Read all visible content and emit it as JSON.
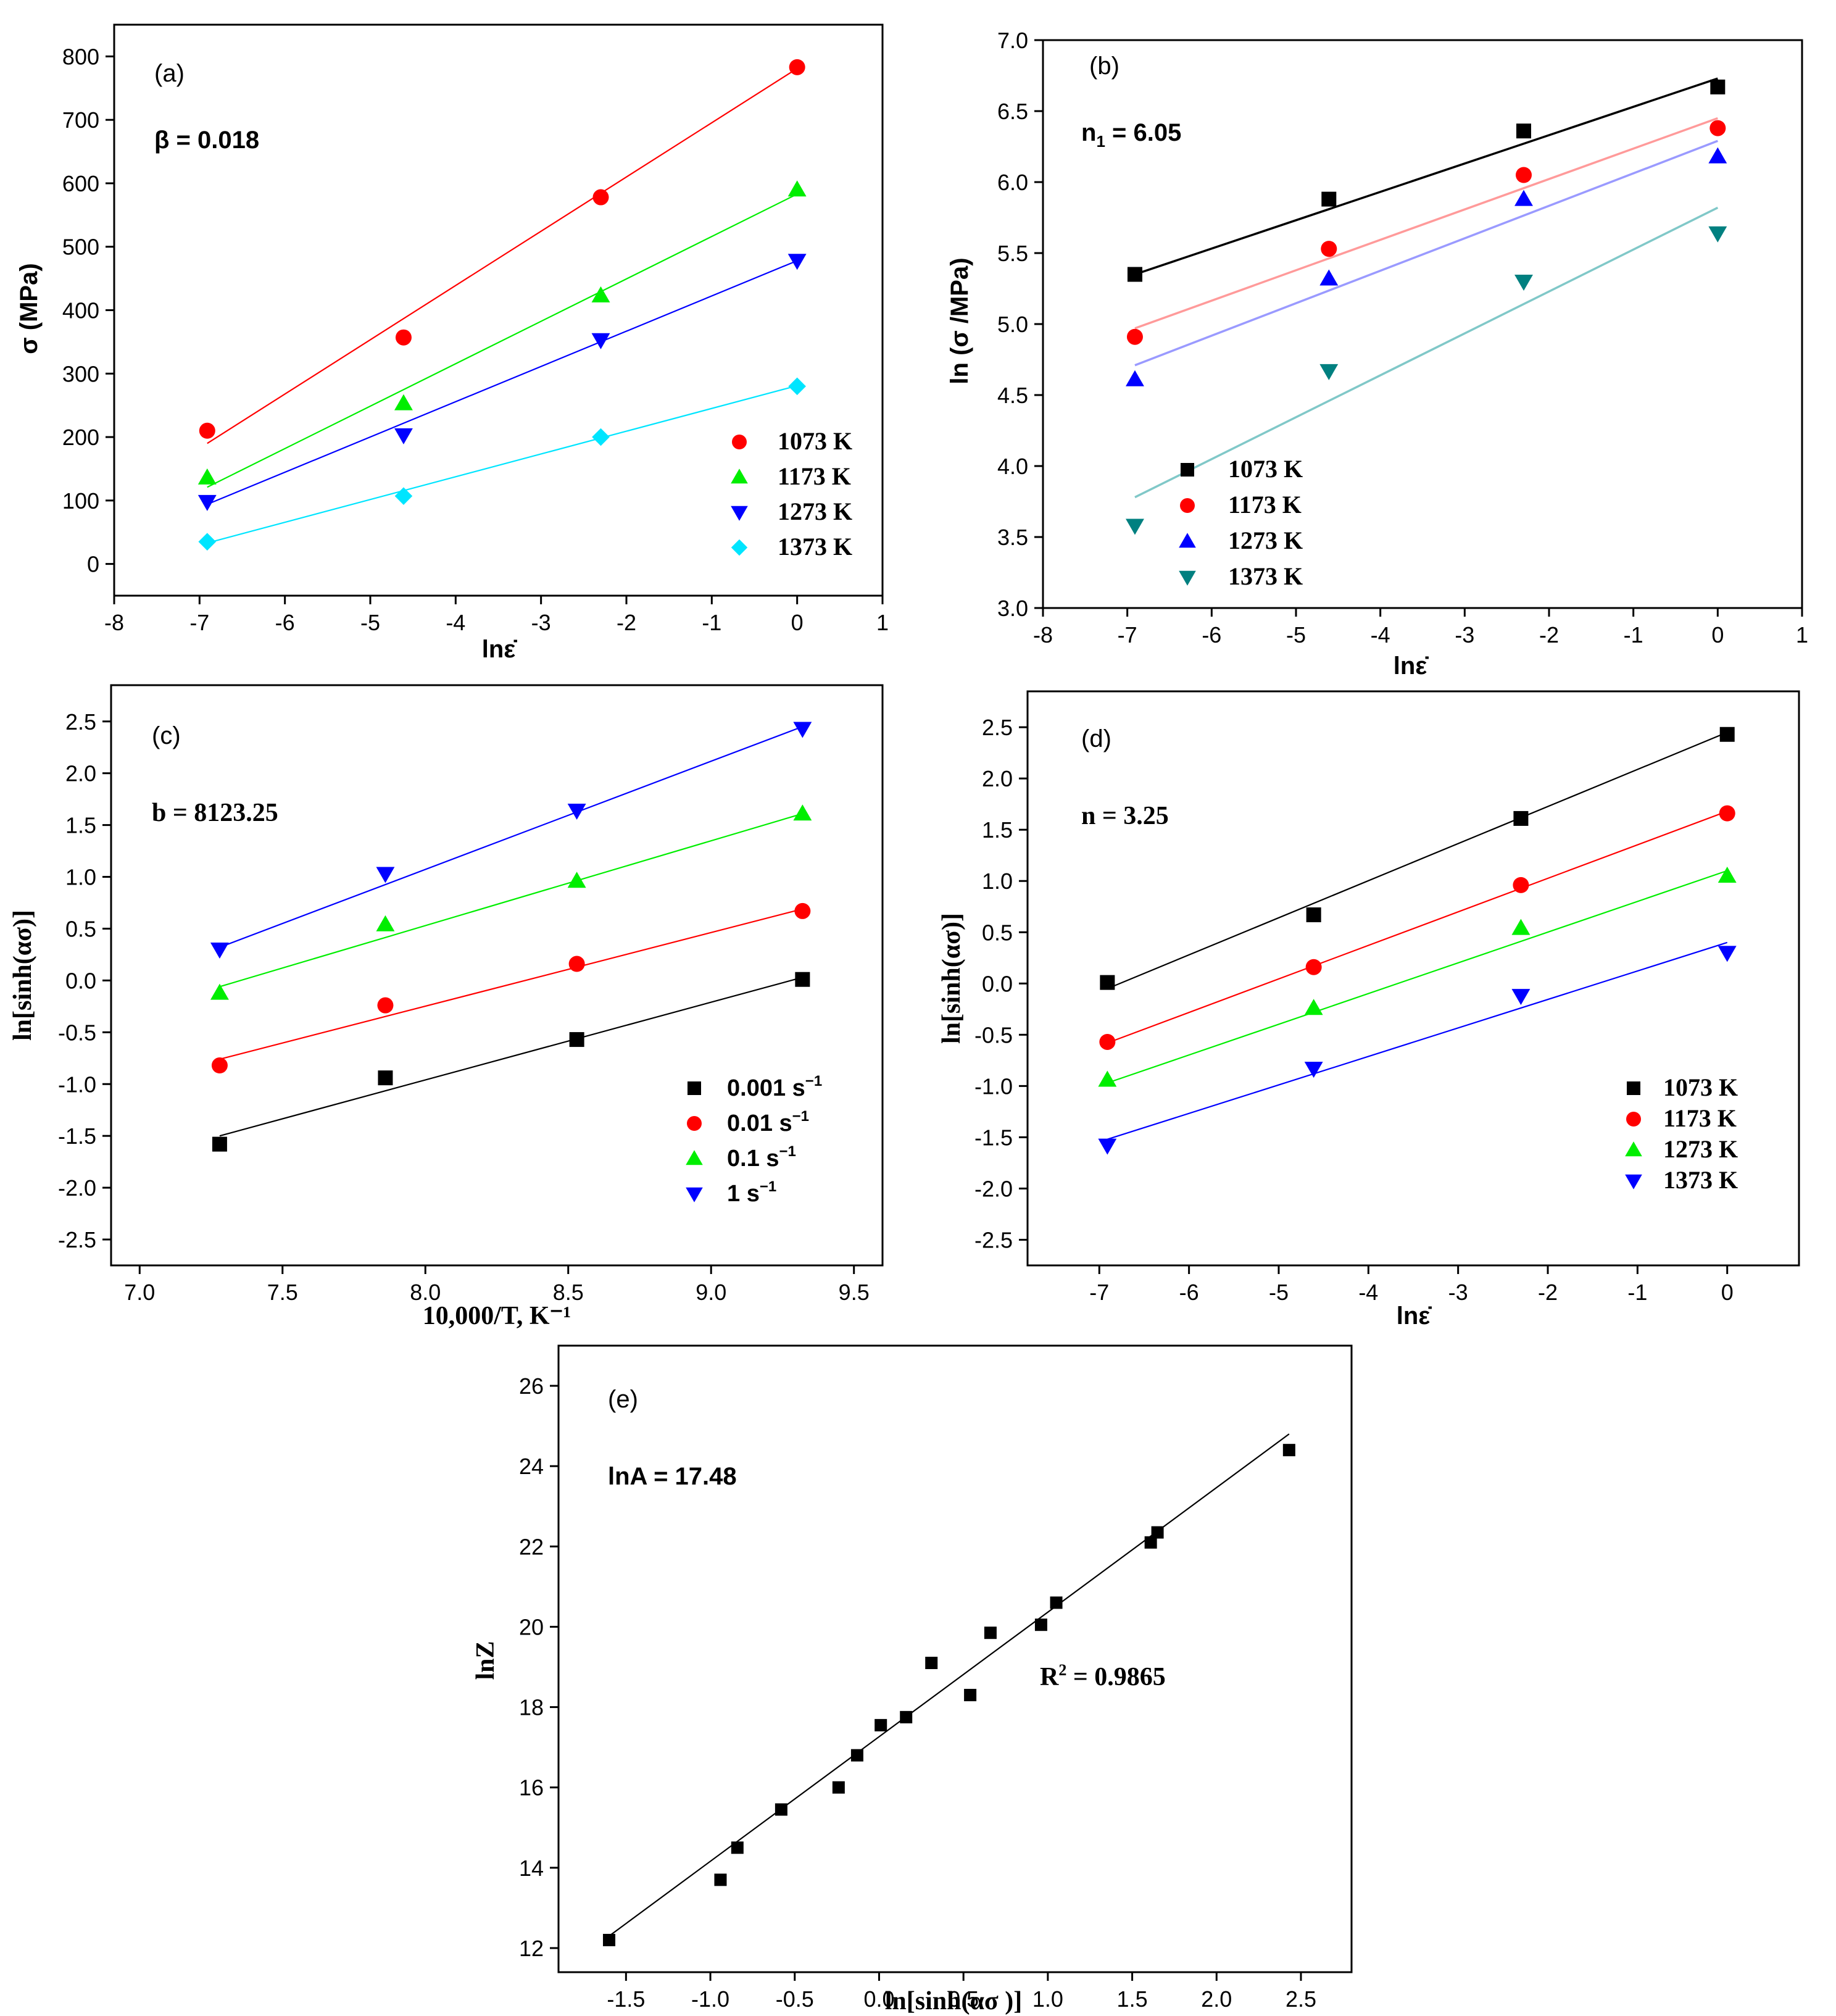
{
  "chart_data": [
    {
      "id": "a",
      "type": "scatter",
      "panel_label": "(a)",
      "annotation": "β = 0.018",
      "xlabel": "lnε̇",
      "ylabel": "σ (MPa)",
      "xlim": [
        -8,
        1
      ],
      "ylim": [
        -50,
        850
      ],
      "xticks": [
        "-8",
        "-7",
        "-6",
        "-5",
        "-4",
        "-3",
        "-2",
        "-1",
        "0",
        "1"
      ],
      "yticks": [
        "0",
        "100",
        "200",
        "300",
        "400",
        "500",
        "600",
        "700",
        "800"
      ],
      "legend_position": "bottom-right",
      "series": [
        {
          "name": "1073 K",
          "color": "#ff0000",
          "marker": "circle",
          "x": [
            -6.91,
            -4.61,
            -2.3,
            0
          ],
          "y": [
            210,
            357,
            578,
            783
          ],
          "fit": [
            [
              -6.91,
              190
            ],
            [
              0,
              781
            ]
          ]
        },
        {
          "name": "1173 K",
          "color": "#00ee00",
          "marker": "triangle-up",
          "x": [
            -6.91,
            -4.61,
            -2.3,
            0
          ],
          "y": [
            136,
            253,
            423,
            590
          ],
          "fit": [
            [
              -6.91,
              121
            ],
            [
              0,
              583
            ]
          ]
        },
        {
          "name": "1273 K",
          "color": "#0000ff",
          "marker": "triangle-down",
          "x": [
            -6.91,
            -4.61,
            -2.3,
            0
          ],
          "y": [
            98,
            203,
            353,
            478
          ],
          "fit": [
            [
              -6.91,
              94
            ],
            [
              0,
              478
            ]
          ]
        },
        {
          "name": "1373 K",
          "color": "#00e5ff",
          "marker": "diamond",
          "x": [
            -6.91,
            -4.61,
            -2.3,
            0
          ],
          "y": [
            35,
            107,
            200,
            280
          ],
          "fit": [
            [
              -6.91,
              33
            ],
            [
              0,
              281
            ]
          ]
        }
      ]
    },
    {
      "id": "b",
      "type": "scatter",
      "panel_label": "(b)",
      "annotation_main": "n",
      "annotation_sub": "1",
      "annotation_rest": " = 6.05",
      "xlabel": "lnε̇",
      "ylabel": "ln (σ /MPa)",
      "xlim": [
        -8,
        1
      ],
      "ylim": [
        3.0,
        7.0
      ],
      "xticks": [
        "-8",
        "-7",
        "-6",
        "-5",
        "-4",
        "-3",
        "-2",
        "-1",
        "0",
        "1"
      ],
      "yticks": [
        "3.0",
        "3.5",
        "4.0",
        "4.5",
        "5.0",
        "5.5",
        "6.0",
        "6.5",
        "7.0"
      ],
      "legend_position": "bottom-right",
      "series": [
        {
          "name": "1073 K",
          "color": "#000000",
          "marker": "square",
          "x": [
            -6.91,
            -4.61,
            -2.3,
            0
          ],
          "y": [
            5.35,
            5.88,
            6.36,
            6.67
          ],
          "fit": [
            [
              -6.91,
              5.35
            ],
            [
              0,
              6.73
            ]
          ],
          "fitcolor": "#000000"
        },
        {
          "name": "1173 K",
          "color": "#ff0000",
          "marker": "circle",
          "x": [
            -6.91,
            -4.61,
            -2.3,
            0
          ],
          "y": [
            4.91,
            5.53,
            6.05,
            6.38
          ],
          "fit": [
            [
              -6.91,
              4.97
            ],
            [
              0,
              6.45
            ]
          ],
          "fitcolor": "#ff9a9a"
        },
        {
          "name": "1273 K",
          "color": "#0000ff",
          "marker": "triangle-up",
          "x": [
            -6.91,
            -4.61,
            -2.3,
            0
          ],
          "y": [
            4.61,
            5.32,
            5.88,
            6.18
          ],
          "fit": [
            [
              -6.91,
              4.71
            ],
            [
              0,
              6.29
            ]
          ],
          "fitcolor": "#9a9aff"
        },
        {
          "name": "1373 K",
          "color": "#008080",
          "marker": "triangle-down",
          "x": [
            -6.91,
            -4.61,
            -2.3,
            0
          ],
          "y": [
            3.58,
            4.67,
            5.3,
            5.64
          ],
          "fit": [
            [
              -6.91,
              3.78
            ],
            [
              0,
              5.82
            ]
          ],
          "fitcolor": "#80c8c8"
        }
      ]
    },
    {
      "id": "c",
      "type": "scatter",
      "panel_label": "(c)",
      "annotation": "b = 8123.25",
      "xlabel": "10,000/T, K⁻¹",
      "ylabel": "ln[sinh(ασ)]",
      "xlim": [
        6.9,
        9.6
      ],
      "ylim": [
        -2.75,
        2.85
      ],
      "xticks": [
        "7.0",
        "7.5",
        "8.0",
        "8.5",
        "9.0",
        "9.5"
      ],
      "yticks": [
        "-2.5",
        "-2.0",
        "-1.5",
        "-1.0",
        "-0.5",
        "0.0",
        "0.5",
        "1.0",
        "1.5",
        "2.0",
        "2.5"
      ],
      "legend_position": "bottom-right",
      "series": [
        {
          "name": "0.001 s",
          "sup": "−1",
          "color": "#000000",
          "marker": "square",
          "x": [
            7.28,
            7.86,
            8.53,
            9.32
          ],
          "y": [
            -1.58,
            -0.94,
            -0.57,
            0.01
          ],
          "fit": [
            [
              7.28,
              -1.5
            ],
            [
              9.32,
              0.03
            ]
          ]
        },
        {
          "name": "0.01 s",
          "sup": "−1",
          "color": "#ff0000",
          "marker": "circle",
          "x": [
            7.28,
            7.86,
            8.53,
            9.32
          ],
          "y": [
            -0.82,
            -0.24,
            0.16,
            0.67
          ],
          "fit": [
            [
              7.28,
              -0.76
            ],
            [
              9.32,
              0.69
            ]
          ]
        },
        {
          "name": "0.1 s",
          "sup": "−1",
          "color": "#00ee00",
          "marker": "triangle-up",
          "x": [
            7.28,
            7.86,
            8.53,
            9.32
          ],
          "y": [
            -0.12,
            0.54,
            0.96,
            1.61
          ],
          "fit": [
            [
              7.28,
              -0.06
            ],
            [
              9.32,
              1.61
            ]
          ]
        },
        {
          "name": "1 s",
          "sup": "−1",
          "color": "#0000ff",
          "marker": "triangle-down",
          "x": [
            7.28,
            7.86,
            8.53,
            9.32
          ],
          "y": [
            0.3,
            1.03,
            1.64,
            2.43
          ],
          "fit": [
            [
              7.28,
              0.32
            ],
            [
              9.32,
              2.45
            ]
          ]
        }
      ]
    },
    {
      "id": "d",
      "type": "scatter",
      "panel_label": "(d)",
      "annotation": "n = 3.25",
      "xlabel": "lnε̇",
      "ylabel": "ln[sinh(ασ)]",
      "xlim": [
        -7.8,
        0.8
      ],
      "ylim": [
        -2.75,
        2.85
      ],
      "xticks": [
        "-7",
        "-6",
        "-5",
        "-4",
        "-3",
        "-2",
        "-1",
        "0"
      ],
      "yticks": [
        "-2.5",
        "-2.0",
        "-1.5",
        "-1.0",
        "-0.5",
        "0.0",
        "0.5",
        "1.0",
        "1.5",
        "2.0",
        "2.5"
      ],
      "legend_position": "bottom-right",
      "series": [
        {
          "name": "1073 K",
          "color": "#000000",
          "marker": "square",
          "x": [
            -6.91,
            -4.61,
            -2.3,
            0
          ],
          "y": [
            0.01,
            0.67,
            1.61,
            2.43
          ],
          "fit": [
            [
              -6.91,
              -0.05
            ],
            [
              0,
              2.45
            ]
          ]
        },
        {
          "name": "1173 K",
          "color": "#ff0000",
          "marker": "circle",
          "x": [
            -6.91,
            -4.61,
            -2.3,
            0
          ],
          "y": [
            -0.57,
            0.16,
            0.96,
            1.66
          ],
          "fit": [
            [
              -6.91,
              -0.58
            ],
            [
              0,
              1.68
            ]
          ]
        },
        {
          "name": "1273 K",
          "color": "#00ee00",
          "marker": "triangle-up",
          "x": [
            -6.91,
            -4.61,
            -2.3,
            0
          ],
          "y": [
            -0.94,
            -0.24,
            0.54,
            1.05
          ],
          "fit": [
            [
              -6.91,
              -0.97
            ],
            [
              0,
              1.1
            ]
          ]
        },
        {
          "name": "1373 K",
          "color": "#0000ff",
          "marker": "triangle-down",
          "x": [
            -6.91,
            -4.61,
            -2.3,
            0
          ],
          "y": [
            -1.58,
            -0.83,
            -0.12,
            0.3
          ],
          "fit": [
            [
              -6.91,
              -1.52
            ],
            [
              0,
              0.4
            ]
          ]
        }
      ]
    },
    {
      "id": "e",
      "type": "scatter",
      "panel_label": "(e)",
      "annotation": "lnA = 17.48",
      "r2_prefix": "R",
      "r2_sup": "2",
      "r2_value": " = 0.9865",
      "xlabel": "ln[sinh(ασ )]",
      "ylabel": "lnZ",
      "xlim": [
        -1.9,
        2.8
      ],
      "ylim": [
        11.4,
        27.0
      ],
      "xticks": [
        "-1.5",
        "-1.0",
        "-0.5",
        "0.0",
        "0.5",
        "1.0",
        "1.5",
        "2.0",
        "2.5"
      ],
      "yticks": [
        "12",
        "14",
        "16",
        "18",
        "20",
        "22",
        "24",
        "26"
      ],
      "series": [
        {
          "name": "data",
          "color": "#000000",
          "marker": "square",
          "x": [
            -1.6,
            -0.94,
            -0.84,
            -0.58,
            -0.24,
            -0.13,
            0.01,
            0.16,
            0.31,
            0.54,
            0.66,
            0.96,
            1.05,
            1.61,
            1.65,
            2.43
          ],
          "y": [
            12.2,
            13.7,
            14.5,
            15.45,
            16.0,
            16.8,
            17.55,
            17.75,
            19.1,
            18.3,
            19.85,
            20.05,
            20.6,
            22.1,
            22.35,
            24.4
          ],
          "fit": [
            [
              -1.6,
              12.3
            ],
            [
              2.43,
              24.8
            ]
          ]
        }
      ]
    }
  ]
}
